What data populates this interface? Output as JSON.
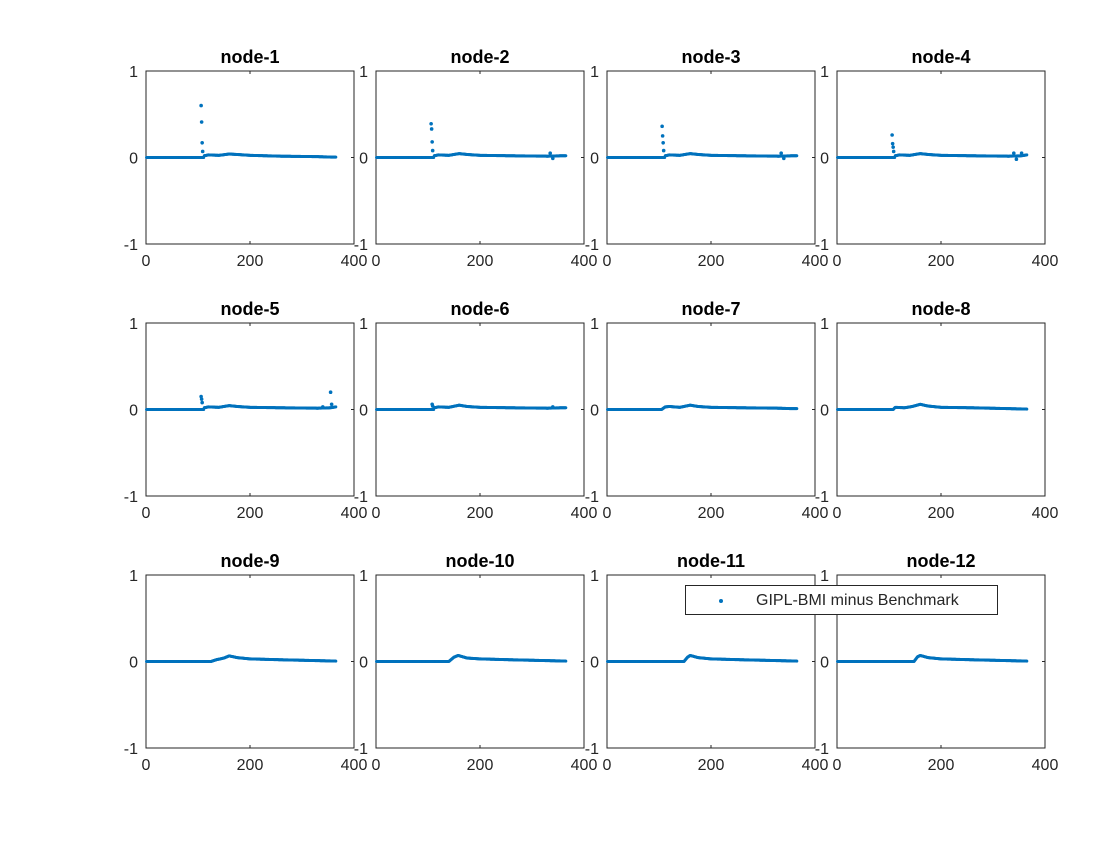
{
  "chart_data": [
    {
      "type": "scatter",
      "title": "node-1",
      "xlim": [
        0,
        400
      ],
      "ylim": [
        -1,
        1
      ],
      "xticks": [
        "0",
        "200",
        "400"
      ],
      "yticks": [
        "1",
        "0",
        "-1"
      ],
      "series": [
        {
          "name": "GIPL-BMI minus Benchmark",
          "color": "#0072bd",
          "x_range": [
            1,
            365
          ],
          "baseline": 0,
          "spikes": [
            [
              106,
              0.6
            ],
            [
              107,
              0.41
            ],
            [
              108,
              0.17
            ],
            [
              109,
              0.07
            ]
          ],
          "bumps": [
            [
              112,
              0.02
            ],
            [
              120,
              0.03
            ],
            [
              140,
              0.025
            ],
            [
              160,
              0.04
            ],
            [
              175,
              0.035
            ],
            [
              200,
              0.025
            ],
            [
              260,
              0.015
            ],
            [
              330,
              0.01
            ],
            [
              355,
              0.005
            ],
            [
              365,
              0.005
            ]
          ]
        }
      ]
    },
    {
      "type": "scatter",
      "title": "node-2",
      "xlim": [
        0,
        400
      ],
      "ylim": [
        -1,
        1
      ],
      "xticks": [
        "0",
        "200",
        "400"
      ],
      "yticks": [
        "1",
        "0",
        "-1"
      ],
      "series": [
        {
          "name": "GIPL-BMI minus Benchmark",
          "color": "#0072bd",
          "x_range": [
            1,
            365
          ],
          "baseline": 0,
          "spikes": [
            [
              106,
              0.39
            ],
            [
              107,
              0.33
            ],
            [
              108,
              0.18
            ],
            [
              109,
              0.08
            ],
            [
              335,
              0.05
            ],
            [
              340,
              -0.01
            ]
          ],
          "bumps": [
            [
              112,
              0.02
            ],
            [
              120,
              0.03
            ],
            [
              140,
              0.025
            ],
            [
              160,
              0.045
            ],
            [
              175,
              0.035
            ],
            [
              200,
              0.025
            ],
            [
              260,
              0.02
            ],
            [
              330,
              0.015
            ],
            [
              355,
              0.02
            ],
            [
              365,
              0.02
            ]
          ]
        }
      ]
    },
    {
      "type": "scatter",
      "title": "node-3",
      "xlim": [
        0,
        400
      ],
      "ylim": [
        -1,
        1
      ],
      "xticks": [
        "0",
        "200",
        "400"
      ],
      "yticks": [
        "1",
        "0",
        "-1"
      ],
      "series": [
        {
          "name": "GIPL-BMI minus Benchmark",
          "color": "#0072bd",
          "x_range": [
            1,
            365
          ],
          "baseline": 0,
          "spikes": [
            [
              106,
              0.36
            ],
            [
              107,
              0.25
            ],
            [
              108,
              0.17
            ],
            [
              109,
              0.08
            ],
            [
              335,
              0.05
            ],
            [
              340,
              -0.01
            ]
          ],
          "bumps": [
            [
              112,
              0.02
            ],
            [
              120,
              0.03
            ],
            [
              140,
              0.025
            ],
            [
              160,
              0.045
            ],
            [
              175,
              0.035
            ],
            [
              200,
              0.025
            ],
            [
              260,
              0.02
            ],
            [
              330,
              0.015
            ],
            [
              355,
              0.02
            ],
            [
              365,
              0.02
            ]
          ]
        }
      ]
    },
    {
      "type": "scatter",
      "title": "node-4",
      "xlim": [
        0,
        400
      ],
      "ylim": [
        -1,
        1
      ],
      "xticks": [
        "0",
        "200",
        "400"
      ],
      "yticks": [
        "1",
        "0",
        "-1"
      ],
      "series": [
        {
          "name": "GIPL-BMI minus Benchmark",
          "color": "#0072bd",
          "x_range": [
            1,
            365
          ],
          "baseline": 0,
          "spikes": [
            [
              106,
              0.26
            ],
            [
              107,
              0.16
            ],
            [
              108,
              0.12
            ],
            [
              109,
              0.07
            ],
            [
              340,
              0.05
            ],
            [
              345,
              -0.02
            ],
            [
              355,
              0.05
            ]
          ],
          "bumps": [
            [
              112,
              0.02
            ],
            [
              120,
              0.03
            ],
            [
              140,
              0.025
            ],
            [
              160,
              0.045
            ],
            [
              175,
              0.035
            ],
            [
              200,
              0.025
            ],
            [
              260,
              0.02
            ],
            [
              330,
              0.015
            ],
            [
              355,
              0.02
            ],
            [
              365,
              0.03
            ]
          ]
        }
      ]
    },
    {
      "type": "scatter",
      "title": "node-5",
      "xlim": [
        0,
        400
      ],
      "ylim": [
        -1,
        1
      ],
      "xticks": [
        "0",
        "200",
        "400"
      ],
      "yticks": [
        "1",
        "0",
        "-1"
      ],
      "series": [
        {
          "name": "GIPL-BMI minus Benchmark",
          "color": "#0072bd",
          "x_range": [
            1,
            365
          ],
          "baseline": 0,
          "spikes": [
            [
              106,
              0.15
            ],
            [
              107,
              0.12
            ],
            [
              108,
              0.08
            ],
            [
              340,
              0.03
            ],
            [
              355,
              0.2
            ],
            [
              357,
              0.06
            ]
          ],
          "bumps": [
            [
              112,
              0.02
            ],
            [
              120,
              0.03
            ],
            [
              140,
              0.025
            ],
            [
              160,
              0.045
            ],
            [
              175,
              0.035
            ],
            [
              200,
              0.025
            ],
            [
              260,
              0.02
            ],
            [
              330,
              0.015
            ],
            [
              355,
              0.02
            ],
            [
              365,
              0.03
            ]
          ]
        }
      ]
    },
    {
      "type": "scatter",
      "title": "node-6",
      "xlim": [
        0,
        400
      ],
      "ylim": [
        -1,
        1
      ],
      "xticks": [
        "0",
        "200",
        "400"
      ],
      "yticks": [
        "1",
        "0",
        "-1"
      ],
      "series": [
        {
          "name": "GIPL-BMI minus Benchmark",
          "color": "#0072bd",
          "x_range": [
            1,
            365
          ],
          "baseline": 0,
          "spikes": [
            [
              108,
              0.06
            ],
            [
              109,
              0.04
            ],
            [
              340,
              0.03
            ]
          ],
          "bumps": [
            [
              112,
              0.02
            ],
            [
              120,
              0.03
            ],
            [
              140,
              0.025
            ],
            [
              160,
              0.05
            ],
            [
              175,
              0.035
            ],
            [
              200,
              0.025
            ],
            [
              260,
              0.02
            ],
            [
              330,
              0.015
            ],
            [
              355,
              0.02
            ],
            [
              365,
              0.02
            ]
          ]
        }
      ]
    },
    {
      "type": "scatter",
      "title": "node-7",
      "xlim": [
        0,
        400
      ],
      "ylim": [
        -1,
        1
      ],
      "xticks": [
        "0",
        "200",
        "400"
      ],
      "yticks": [
        "1",
        "0",
        "-1"
      ],
      "series": [
        {
          "name": "GIPL-BMI minus Benchmark",
          "color": "#0072bd",
          "x_range": [
            1,
            365
          ],
          "baseline": 0,
          "spikes": [],
          "bumps": [
            [
              105,
              0
            ],
            [
              112,
              0.03
            ],
            [
              120,
              0.035
            ],
            [
              140,
              0.025
            ],
            [
              160,
              0.05
            ],
            [
              175,
              0.035
            ],
            [
              200,
              0.025
            ],
            [
              260,
              0.02
            ],
            [
              330,
              0.015
            ],
            [
              355,
              0.01
            ],
            [
              365,
              0.01
            ]
          ]
        }
      ]
    },
    {
      "type": "scatter",
      "title": "node-8",
      "xlim": [
        0,
        400
      ],
      "ylim": [
        -1,
        1
      ],
      "xticks": [
        "0",
        "200",
        "400"
      ],
      "yticks": [
        "1",
        "0",
        "-1"
      ],
      "series": [
        {
          "name": "GIPL-BMI minus Benchmark",
          "color": "#0072bd",
          "x_range": [
            1,
            365
          ],
          "baseline": 0,
          "spikes": [],
          "bumps": [
            [
              108,
              0
            ],
            [
              112,
              0.025
            ],
            [
              130,
              0.02
            ],
            [
              145,
              0.035
            ],
            [
              160,
              0.06
            ],
            [
              175,
              0.04
            ],
            [
              200,
              0.025
            ],
            [
              260,
              0.02
            ],
            [
              330,
              0.01
            ],
            [
              365,
              0.005
            ]
          ]
        }
      ]
    },
    {
      "type": "scatter",
      "title": "node-9",
      "xlim": [
        0,
        400
      ],
      "ylim": [
        -1,
        1
      ],
      "xticks": [
        "0",
        "200",
        "400"
      ],
      "yticks": [
        "1",
        "0",
        "-1"
      ],
      "series": [
        {
          "name": "GIPL-BMI minus Benchmark",
          "color": "#0072bd",
          "x_range": [
            1,
            365
          ],
          "baseline": 0,
          "spikes": [],
          "bumps": [
            [
              125,
              0
            ],
            [
              135,
              0.02
            ],
            [
              150,
              0.04
            ],
            [
              160,
              0.065
            ],
            [
              175,
              0.045
            ],
            [
              200,
              0.03
            ],
            [
              260,
              0.02
            ],
            [
              330,
              0.01
            ],
            [
              365,
              0.005
            ]
          ]
        }
      ]
    },
    {
      "type": "scatter",
      "title": "node-10",
      "xlim": [
        0,
        400
      ],
      "ylim": [
        -1,
        1
      ],
      "xticks": [
        "0",
        "200",
        "400"
      ],
      "yticks": [
        "1",
        "0",
        "-1"
      ],
      "series": [
        {
          "name": "GIPL-BMI minus Benchmark",
          "color": "#0072bd",
          "x_range": [
            1,
            365
          ],
          "baseline": 0,
          "spikes": [],
          "bumps": [
            [
              140,
              0
            ],
            [
              150,
              0.05
            ],
            [
              158,
              0.07
            ],
            [
              175,
              0.04
            ],
            [
              200,
              0.03
            ],
            [
              260,
              0.02
            ],
            [
              330,
              0.01
            ],
            [
              365,
              0.005
            ]
          ]
        }
      ]
    },
    {
      "type": "scatter",
      "title": "node-11",
      "xlim": [
        0,
        400
      ],
      "ylim": [
        -1,
        1
      ],
      "xticks": [
        "0",
        "200",
        "400"
      ],
      "yticks": [
        "1",
        "0",
        "-1"
      ],
      "series": [
        {
          "name": "GIPL-BMI minus Benchmark",
          "color": "#0072bd",
          "x_range": [
            1,
            365
          ],
          "baseline": 0,
          "spikes": [],
          "bumps": [
            [
              148,
              0
            ],
            [
              155,
              0.05
            ],
            [
              160,
              0.07
            ],
            [
              175,
              0.045
            ],
            [
              200,
              0.03
            ],
            [
              260,
              0.02
            ],
            [
              330,
              0.01
            ],
            [
              365,
              0.005
            ]
          ]
        }
      ]
    },
    {
      "type": "scatter",
      "title": "node-12",
      "xlim": [
        0,
        400
      ],
      "ylim": [
        -1,
        1
      ],
      "xticks": [
        "0",
        "200",
        "400"
      ],
      "yticks": [
        "1",
        "0",
        "-1"
      ],
      "series": [
        {
          "name": "GIPL-BMI minus Benchmark",
          "color": "#0072bd",
          "x_range": [
            1,
            365
          ],
          "baseline": 0,
          "spikes": [],
          "bumps": [
            [
              148,
              0
            ],
            [
              155,
              0.055
            ],
            [
              160,
              0.07
            ],
            [
              175,
              0.045
            ],
            [
              200,
              0.03
            ],
            [
              260,
              0.02
            ],
            [
              330,
              0.01
            ],
            [
              365,
              0.005
            ]
          ]
        }
      ]
    }
  ],
  "legend": {
    "label": "GIPL-BMI minus Benchmark",
    "placement": "upper-right of node-11 panel"
  }
}
